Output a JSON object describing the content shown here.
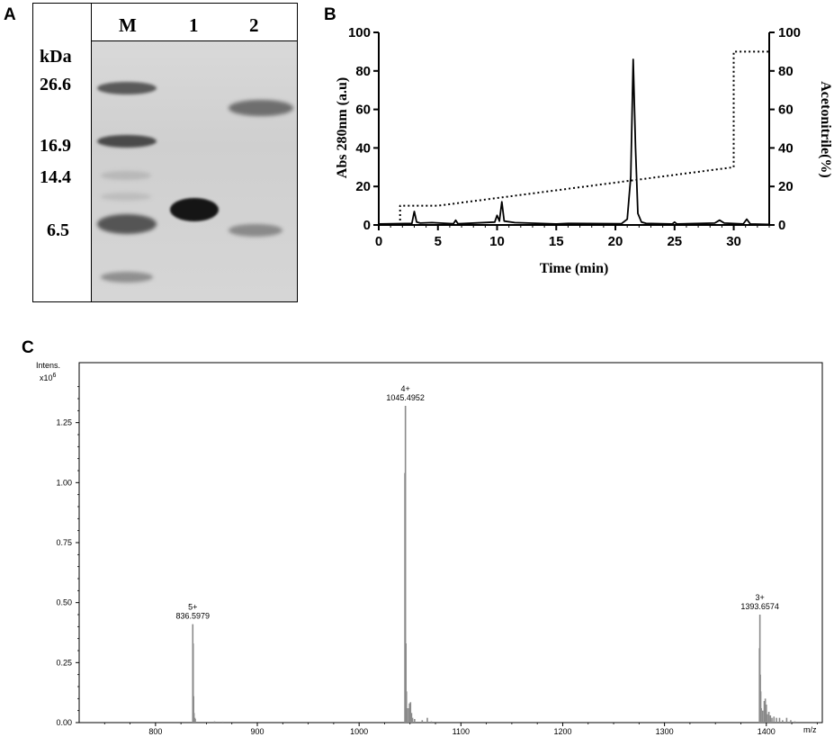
{
  "panels": {
    "a": {
      "letter": "A",
      "lanes": [
        "M",
        "1",
        "2"
      ],
      "unit": "kDa",
      "markers": [
        "26.6",
        "16.9",
        "14.4",
        "6.5"
      ]
    },
    "b": {
      "letter": "B",
      "chart_data": {
        "type": "line",
        "xlabel": "Time (min)",
        "ylabel": "Abs 280nm (a.u)",
        "y2label": "Acetonitrile(%)",
        "xlim": [
          0,
          33
        ],
        "ylim": [
          0,
          100
        ],
        "y2lim": [
          0,
          100
        ],
        "xticks": [
          0,
          5,
          10,
          15,
          20,
          25,
          30
        ],
        "yticks": [
          0,
          20,
          40,
          60,
          80,
          100
        ],
        "y2ticks": [
          0,
          20,
          40,
          60,
          80,
          100
        ],
        "series": [
          {
            "style": "solid",
            "x": [
              0,
              2.8,
              3.0,
              3.2,
              3.5,
              4.5,
              6.3,
              6.5,
              6.7,
              9.8,
              10.0,
              10.2,
              10.4,
              10.6,
              11.5,
              15,
              16,
              20.5,
              21.0,
              21.3,
              21.5,
              21.7,
              21.9,
              22.2,
              22.6,
              24.8,
              25.0,
              25.2,
              28.4,
              28.8,
              29.2,
              30.8,
              31.1,
              31.4,
              33
            ],
            "y": [
              0.5,
              0.8,
              7,
              1.5,
              1,
              1.2,
              0.6,
              2.5,
              0.6,
              1.5,
              5,
              2,
              12,
              2,
              1.2,
              0.5,
              0.8,
              0.6,
              3,
              25,
              86,
              40,
              6,
              1.5,
              0.8,
              0.5,
              1.5,
              0.5,
              1,
              2.5,
              1,
              0.5,
              3,
              0.5,
              0.3
            ]
          },
          {
            "style": "dotted",
            "axis": "right",
            "x": [
              1.8,
              1.8,
              5,
              30,
              30,
              33
            ],
            "y": [
              0,
              10,
              10,
              30,
              90,
              90
            ]
          }
        ]
      }
    },
    "c": {
      "letter": "C",
      "chart_data": {
        "type": "bar",
        "ylabel": "Intens.",
        "yscale_label": "x10",
        "yscale_exp": "6",
        "xunit": "m/z",
        "xlim": [
          725,
          1455
        ],
        "ylim": [
          0,
          1.5
        ],
        "xticks": [
          "800",
          "900",
          "1000",
          "1100",
          "1200",
          "1300",
          "1400"
        ],
        "yticks": [
          "0.00",
          "0.25",
          "0.50",
          "0.75",
          "1.00",
          "1.25"
        ],
        "peaks": [
          {
            "x": 836.6,
            "y": 0.41
          },
          {
            "x": 837.0,
            "y": 0.33
          },
          {
            "x": 837.4,
            "y": 0.11
          },
          {
            "x": 837.8,
            "y": 0.04
          },
          {
            "x": 838.6,
            "y": 0.02
          },
          {
            "x": 839.0,
            "y": 0.015
          },
          {
            "x": 858,
            "y": 0.005
          },
          {
            "x": 866,
            "y": 0.004
          },
          {
            "x": 1045.5,
            "y": 1.32
          },
          {
            "x": 1045.0,
            "y": 1.04
          },
          {
            "x": 1046.0,
            "y": 0.33
          },
          {
            "x": 1046.5,
            "y": 0.13
          },
          {
            "x": 1047.0,
            "y": 0.06
          },
          {
            "x": 1048.5,
            "y": 0.06
          },
          {
            "x": 1049.5,
            "y": 0.08
          },
          {
            "x": 1050.5,
            "y": 0.085
          },
          {
            "x": 1051.5,
            "y": 0.04
          },
          {
            "x": 1052.5,
            "y": 0.02
          },
          {
            "x": 1054.5,
            "y": 0.015
          },
          {
            "x": 1062,
            "y": 0.01
          },
          {
            "x": 1067,
            "y": 0.02
          },
          {
            "x": 1071,
            "y": 0.005
          },
          {
            "x": 1393.7,
            "y": 0.45
          },
          {
            "x": 1393.3,
            "y": 0.31
          },
          {
            "x": 1394.1,
            "y": 0.2
          },
          {
            "x": 1394.5,
            "y": 0.13
          },
          {
            "x": 1395.0,
            "y": 0.06
          },
          {
            "x": 1396.5,
            "y": 0.05
          },
          {
            "x": 1398.0,
            "y": 0.09
          },
          {
            "x": 1399.0,
            "y": 0.1
          },
          {
            "x": 1400.0,
            "y": 0.075
          },
          {
            "x": 1401.0,
            "y": 0.035
          },
          {
            "x": 1402.5,
            "y": 0.045
          },
          {
            "x": 1404.0,
            "y": 0.03
          },
          {
            "x": 1405.5,
            "y": 0.02
          },
          {
            "x": 1407.5,
            "y": 0.025
          },
          {
            "x": 1410,
            "y": 0.02
          },
          {
            "x": 1413,
            "y": 0.02
          },
          {
            "x": 1416,
            "y": 0.01
          },
          {
            "x": 1420,
            "y": 0.02
          },
          {
            "x": 1424,
            "y": 0.01
          },
          {
            "x": 1428,
            "y": 0.005
          }
        ],
        "annotations": [
          {
            "charge": "5+",
            "mz": "836.5979",
            "x": 836.6,
            "y": 0.41
          },
          {
            "charge": "4+",
            "mz": "1045.4952",
            "x": 1045.5,
            "y": 1.32
          },
          {
            "charge": "3+",
            "mz": "1393.6574",
            "x": 1393.7,
            "y": 0.45
          }
        ]
      }
    }
  }
}
